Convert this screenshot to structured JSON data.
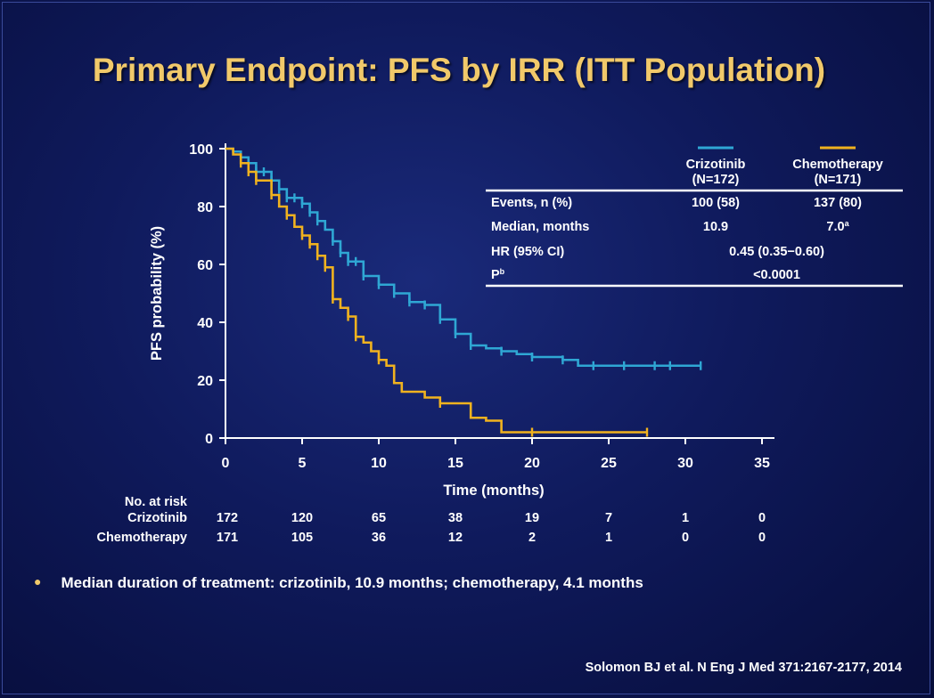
{
  "title": "Primary Endpoint: PFS by IRR (ITT Population)",
  "chart_data": {
    "type": "line",
    "title": "",
    "xlabel": "Time (months)",
    "ylabel": "PFS probability (%)",
    "xlim": [
      0,
      35
    ],
    "ylim": [
      0,
      100
    ],
    "xticks": [
      "0",
      "5",
      "10",
      "15",
      "20",
      "25",
      "30",
      "35"
    ],
    "yticks": [
      "0",
      "20",
      "40",
      "60",
      "80",
      "100"
    ],
    "series": [
      {
        "name": "Crizotinib",
        "color": "#2fa7d4",
        "points": [
          [
            0,
            100
          ],
          [
            0.5,
            99
          ],
          [
            1,
            97
          ],
          [
            1.5,
            95
          ],
          [
            2,
            92
          ],
          [
            3,
            89
          ],
          [
            3.5,
            86
          ],
          [
            4,
            83
          ],
          [
            5,
            81
          ],
          [
            5.5,
            78
          ],
          [
            6,
            75
          ],
          [
            6.5,
            72
          ],
          [
            7,
            68
          ],
          [
            7.5,
            64
          ],
          [
            8,
            61
          ],
          [
            9,
            56
          ],
          [
            10,
            53
          ],
          [
            11,
            50
          ],
          [
            12,
            47
          ],
          [
            13,
            46
          ],
          [
            14,
            41
          ],
          [
            15,
            36
          ],
          [
            16,
            32
          ],
          [
            17,
            31
          ],
          [
            18,
            30
          ],
          [
            19,
            29
          ],
          [
            20,
            28
          ],
          [
            21,
            28
          ],
          [
            22,
            27
          ],
          [
            23,
            25
          ],
          [
            25,
            25
          ],
          [
            28,
            25
          ],
          [
            31,
            25
          ]
        ],
        "censor_x": [
          1,
          2,
          2.5,
          3,
          3.5,
          4,
          4.5,
          5,
          5.5,
          6,
          7,
          7.5,
          8,
          8.5,
          9,
          10,
          11,
          12,
          13,
          14,
          15,
          16,
          18,
          20,
          22,
          24,
          26,
          28,
          29,
          31
        ]
      },
      {
        "name": "Chemotherapy",
        "color": "#f0b21f",
        "points": [
          [
            0,
            100
          ],
          [
            0.5,
            98
          ],
          [
            1,
            95
          ],
          [
            1.5,
            92
          ],
          [
            2,
            89
          ],
          [
            3,
            84
          ],
          [
            3.5,
            80
          ],
          [
            4,
            77
          ],
          [
            4.5,
            73
          ],
          [
            5,
            70
          ],
          [
            5.5,
            67
          ],
          [
            6,
            63
          ],
          [
            6.5,
            59
          ],
          [
            7,
            48
          ],
          [
            7.5,
            45
          ],
          [
            8,
            42
          ],
          [
            8.5,
            35
          ],
          [
            9,
            33
          ],
          [
            9.5,
            30
          ],
          [
            10,
            27
          ],
          [
            10.5,
            25
          ],
          [
            11,
            19
          ],
          [
            11.5,
            16
          ],
          [
            13,
            14
          ],
          [
            14,
            12
          ],
          [
            16,
            7
          ],
          [
            17,
            6
          ],
          [
            18,
            2
          ],
          [
            20,
            2
          ],
          [
            25,
            2
          ],
          [
            27.5,
            2
          ]
        ],
        "censor_x": [
          1,
          1.5,
          2,
          3,
          4,
          5,
          5.5,
          6,
          6.5,
          7,
          8,
          8.5,
          10,
          14,
          20,
          27.5
        ]
      }
    ]
  },
  "legend_table": {
    "col1_header": [
      "Crizotinib",
      "(N=172)"
    ],
    "col2_header": [
      "Chemotherapy",
      "(N=171)"
    ],
    "rows": [
      {
        "label": "Events, n (%)",
        "v1": "100 (58)",
        "v2": "137 (80)"
      },
      {
        "label": "Median, months",
        "v1": "10.9",
        "v2": "7.0",
        "v2_sup": "a"
      },
      {
        "label": "HR (95% CI)",
        "span": "0.45 (0.35−0.60)"
      },
      {
        "label": "P",
        "label_sup": "b",
        "span": "<0.0001"
      }
    ]
  },
  "risk_table": {
    "header": "No. at risk",
    "rows": [
      {
        "label": "Crizotinib",
        "values": [
          "172",
          "120",
          "65",
          "38",
          "19",
          "7",
          "1",
          "0"
        ]
      },
      {
        "label": "Chemotherapy",
        "values": [
          "171",
          "105",
          "36",
          "12",
          "2",
          "1",
          "0",
          "0"
        ]
      }
    ]
  },
  "bullet": "Median duration of treatment: crizotinib, 10.9 months; chemotherapy, 4.1 months",
  "citation": "Solomon BJ et al. N Eng J Med 371:2167-2177, 2014"
}
